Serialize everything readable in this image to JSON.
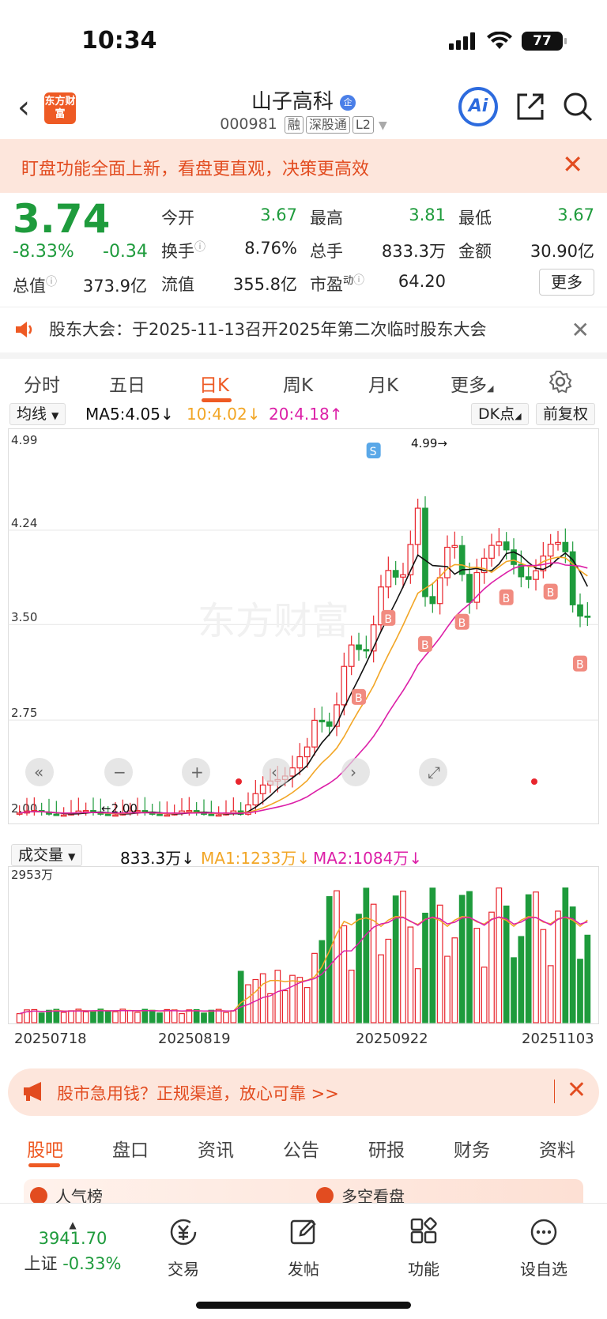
{
  "status": {
    "time": "10:34",
    "battery": "77"
  },
  "header": {
    "logo": "东方财富",
    "stock_name": "山子高科",
    "badge": "企",
    "stock_code": "000981",
    "tags": [
      "融",
      "深股通",
      "L2"
    ],
    "ai": "Ai"
  },
  "banner": {
    "text": "盯盘功能全面上新，看盘更直观，决策更高效"
  },
  "quote": {
    "price": "3.74",
    "change_pct": "-8.33%",
    "change": "-0.34",
    "total_value_label": "总值",
    "total_value": "373.9亿",
    "rows": [
      [
        {
          "label": "今开",
          "value": "3.67",
          "color": "green"
        },
        {
          "label": "最高",
          "value": "3.81",
          "color": "green"
        },
        {
          "label": "最低",
          "value": "3.67",
          "color": "green"
        }
      ],
      [
        {
          "label": "换手",
          "value": "8.76%",
          "color": "dark"
        },
        {
          "label": "总手",
          "value": "833.3万",
          "color": "dark"
        },
        {
          "label": "金额",
          "value": "30.90亿",
          "color": "dark"
        }
      ],
      [
        {
          "label": "流值",
          "value": "355.8亿",
          "color": "dark"
        },
        {
          "label": "市盈",
          "label_sup": "动",
          "value": "64.20",
          "color": "dark"
        }
      ]
    ],
    "more": "更多"
  },
  "notice": {
    "text": "股东大会：于2025-11-13召开2025年第二次临时股东大会"
  },
  "tabs": [
    "分时",
    "五日",
    "日K",
    "周K",
    "月K",
    "更多"
  ],
  "ma_bar": {
    "select": "均线",
    "ma5": "MA5:4.05",
    "ma10": "10:4.02",
    "ma20": "20:4.18",
    "dk": "DK点",
    "fq": "前复权"
  },
  "vol_bar": {
    "select": "成交量",
    "vol": "833.3万",
    "ma1": "MA1:1233万",
    "ma2": "MA2:1084万"
  },
  "chart_data": {
    "type": "candlestick",
    "y_ticks": [
      "4.99",
      "4.24",
      "3.50",
      "2.75",
      "2.00"
    ],
    "ylim": [
      2.0,
      4.99
    ],
    "high_label": "4.99",
    "low_label": "2.00",
    "volume_max_label": "2953万",
    "date_labels": [
      "20250718",
      "20250819",
      "20250922",
      "20251103"
    ],
    "markers": [
      "S",
      "B"
    ],
    "colors": {
      "up": "#e8252d",
      "down": "#1e9b3c",
      "ma5": "#111111",
      "ma10": "#f2a626",
      "ma20": "#dc1fa7"
    }
  },
  "ad": {
    "text": "股市急用钱？正规渠道，放心可靠 >>"
  },
  "subtabs": [
    "股吧",
    "盘口",
    "资讯",
    "公告",
    "研报",
    "财务",
    "资料"
  ],
  "strip": {
    "left": "人气榜",
    "right": "多空看盘"
  },
  "bottom_nav": {
    "index_value": "3941.70",
    "index_name": "上证",
    "index_change": "-0.33%",
    "items": [
      "交易",
      "发帖",
      "功能",
      "设自选"
    ]
  }
}
